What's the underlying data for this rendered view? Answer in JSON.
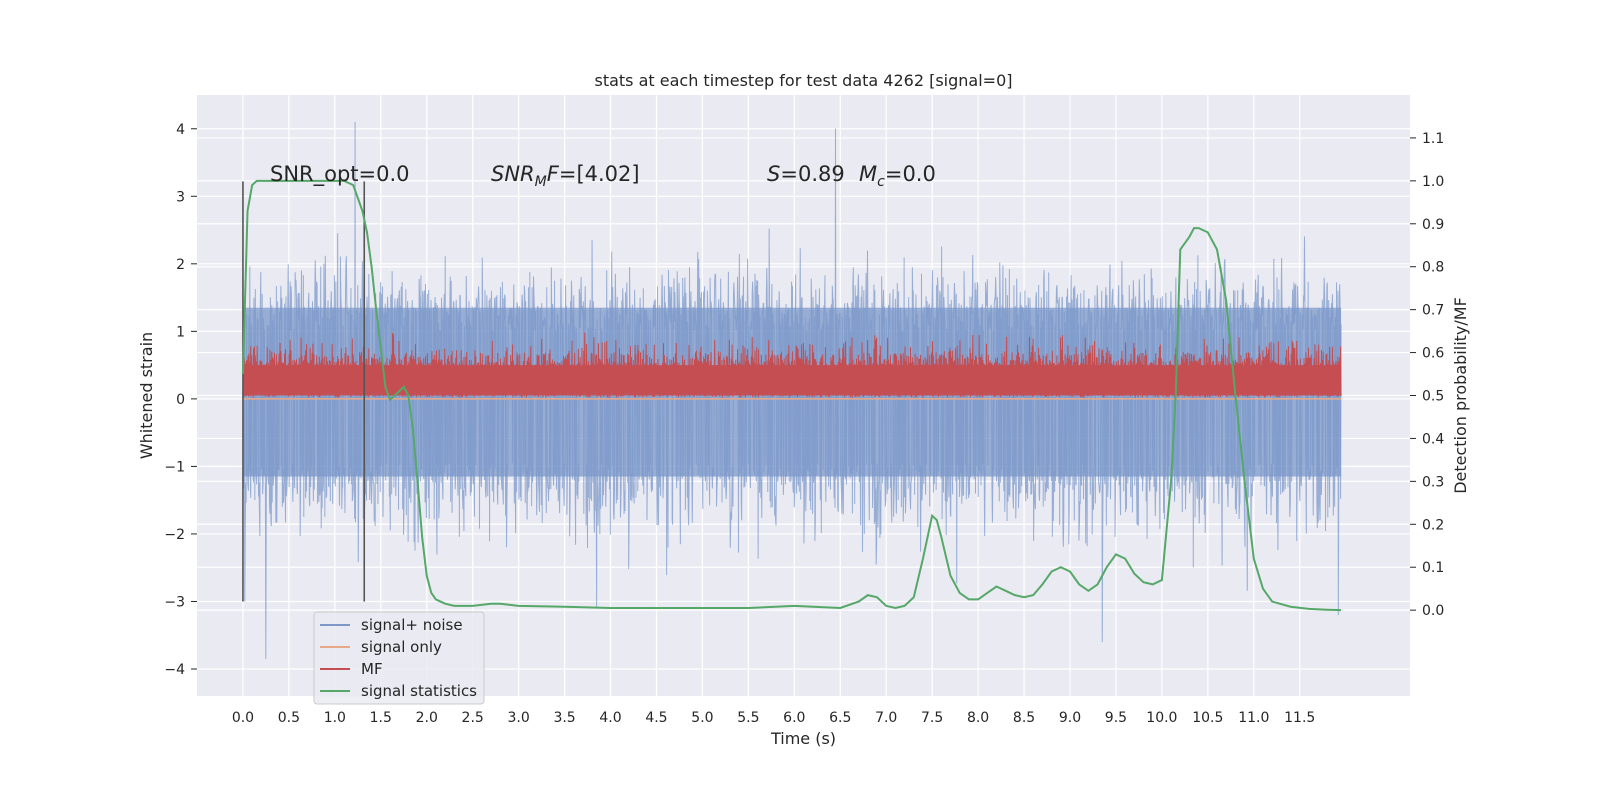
{
  "chart_data": {
    "type": "line",
    "title": "stats at each timestep for test data 4262 [signal=0]",
    "xlabel": "Time (s)",
    "ylabel": "Whitened strain",
    "y2label": "Detection probability/MF",
    "xlim": [
      -0.5,
      12.7
    ],
    "ylim": [
      -4.4,
      4.5
    ],
    "y2lim": [
      -0.2,
      1.2
    ],
    "x_ticks": [
      0.0,
      0.5,
      1.0,
      1.5,
      2.0,
      2.5,
      3.0,
      3.5,
      4.0,
      4.5,
      5.0,
      5.5,
      6.0,
      6.5,
      7.0,
      7.5,
      8.0,
      8.5,
      9.0,
      9.5,
      10.0,
      10.5,
      11.0,
      11.5
    ],
    "x_tick_labels": [
      "0.0",
      "0.5",
      "1.0",
      "1.5",
      "2.0",
      "2.5",
      "3.0",
      "3.5",
      "4.0",
      "4.5",
      "5.0",
      "5.5",
      "6.0",
      "6.5",
      "7.0",
      "7.5",
      "8.0",
      "8.5",
      "9.0",
      "9.5",
      "10.0",
      "10.5",
      "11.0",
      "11.5"
    ],
    "y_ticks": [
      -4,
      -3,
      -2,
      -1,
      0,
      1,
      2,
      3,
      4
    ],
    "y_tick_labels": [
      "−4",
      "−3",
      "−2",
      "−1",
      "0",
      "1",
      "2",
      "3",
      "4"
    ],
    "y2_ticks": [
      0.0,
      0.1,
      0.2,
      0.3,
      0.4,
      0.5,
      0.6,
      0.7,
      0.8,
      0.9,
      1.0,
      1.1
    ],
    "y2_tick_labels": [
      "0.0",
      "0.1",
      "0.2",
      "0.3",
      "0.4",
      "0.5",
      "0.6",
      "0.7",
      "0.8",
      "0.9",
      "1.0",
      "1.1"
    ],
    "grid": true,
    "legend_position": "bottom-left",
    "annotations": {
      "snr_opt": "SNR_opt=0.0",
      "snr_mf": "[4.02]",
      "s_val": "0.89",
      "mc_val": "0.0"
    },
    "vlines_x": [
      0.0,
      1.32
    ],
    "series": [
      {
        "name": "signal+ noise",
        "color": "#7b98c9",
        "style": "dense-noise",
        "x_range": [
          0.0,
          11.95
        ],
        "band": [
          -1.15,
          1.35
        ],
        "extremes": [
          [
            0.0,
            2.1
          ],
          [
            0.02,
            -3.0
          ],
          [
            0.25,
            -3.85
          ],
          [
            1.22,
            4.1
          ],
          [
            3.85,
            -3.1
          ],
          [
            6.45,
            4.0
          ],
          [
            9.35,
            -3.6
          ],
          [
            11.92,
            -3.2
          ]
        ]
      },
      {
        "name": "signal only",
        "color": "#e8a888",
        "style": "flat",
        "values_desc": "flat at 0"
      },
      {
        "name": "MF",
        "color": "#c44e52",
        "style": "dense-noise",
        "x_range": [
          0.0,
          11.95
        ],
        "band": [
          0.0,
          0.75
        ]
      },
      {
        "name": "signal statistics",
        "color": "#55a868",
        "style": "line",
        "x": [
          0.0,
          0.05,
          0.1,
          0.15,
          0.2,
          0.3,
          0.5,
          0.7,
          0.9,
          1.0,
          1.1,
          1.2,
          1.3,
          1.35,
          1.4,
          1.45,
          1.5,
          1.55,
          1.6,
          1.65,
          1.7,
          1.75,
          1.8,
          1.85,
          1.9,
          1.95,
          2.0,
          2.05,
          2.1,
          2.15,
          2.2,
          2.3,
          2.4,
          2.5,
          2.7,
          2.8,
          3.0,
          3.5,
          4.0,
          4.5,
          5.0,
          5.5,
          6.0,
          6.5,
          6.7,
          6.8,
          6.9,
          7.0,
          7.1,
          7.2,
          7.3,
          7.4,
          7.5,
          7.55,
          7.6,
          7.7,
          7.8,
          7.9,
          8.0,
          8.1,
          8.2,
          8.3,
          8.4,
          8.5,
          8.6,
          8.7,
          8.8,
          8.9,
          9.0,
          9.1,
          9.2,
          9.3,
          9.4,
          9.5,
          9.6,
          9.7,
          9.8,
          9.9,
          10.0,
          10.1,
          10.15,
          10.2,
          10.3,
          10.35,
          10.4,
          10.5,
          10.6,
          10.7,
          10.8,
          10.9,
          11.0,
          11.1,
          11.2,
          11.4,
          11.6,
          11.8,
          11.95
        ],
        "y": [
          0.55,
          0.93,
          0.99,
          1.0,
          1.0,
          1.0,
          1.0,
          1.0,
          1.0,
          1.0,
          1.0,
          0.99,
          0.93,
          0.88,
          0.8,
          0.7,
          0.61,
          0.52,
          0.49,
          0.5,
          0.51,
          0.52,
          0.5,
          0.42,
          0.3,
          0.17,
          0.08,
          0.04,
          0.025,
          0.02,
          0.015,
          0.01,
          0.01,
          0.01,
          0.015,
          0.015,
          0.01,
          0.008,
          0.005,
          0.005,
          0.005,
          0.005,
          0.01,
          0.005,
          0.02,
          0.035,
          0.03,
          0.01,
          0.005,
          0.01,
          0.03,
          0.12,
          0.22,
          0.21,
          0.17,
          0.08,
          0.04,
          0.025,
          0.025,
          0.04,
          0.055,
          0.045,
          0.035,
          0.03,
          0.035,
          0.06,
          0.09,
          0.1,
          0.09,
          0.06,
          0.045,
          0.06,
          0.1,
          0.13,
          0.12,
          0.085,
          0.065,
          0.06,
          0.07,
          0.3,
          0.5,
          0.84,
          0.87,
          0.89,
          0.89,
          0.88,
          0.84,
          0.72,
          0.5,
          0.3,
          0.12,
          0.05,
          0.02,
          0.008,
          0.003,
          0.001,
          0.0
        ]
      }
    ]
  }
}
